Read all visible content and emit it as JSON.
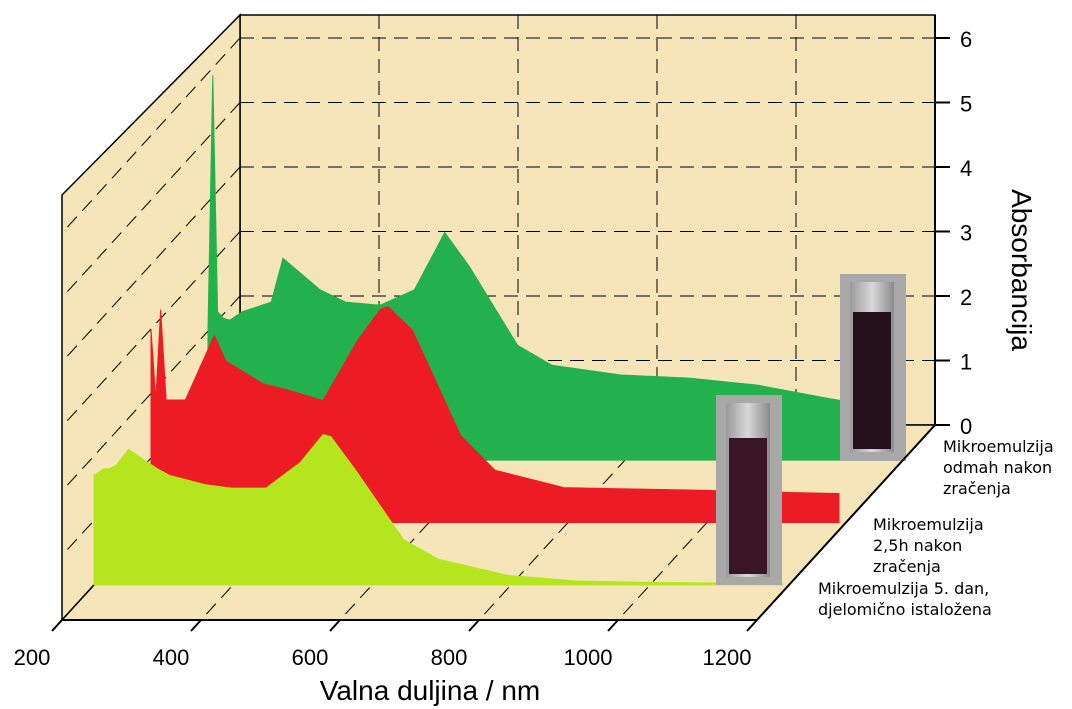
{
  "chart_data": {
    "type": "waterfall",
    "x_label": "Valna duljina / nm",
    "y_label": "Absorbancija",
    "xlim": [
      200,
      1200
    ],
    "xticks": [
      200,
      400,
      600,
      800,
      1000,
      1200
    ],
    "ylim": [
      0,
      6
    ],
    "yticks": [
      0,
      1,
      2,
      3,
      4,
      5,
      6
    ],
    "grid": true,
    "x": [
      200,
      207,
      214,
      222,
      232,
      250,
      292,
      309,
      363,
      400,
      450,
      500,
      533,
      544,
      580,
      650,
      700,
      800,
      900,
      1000,
      1100,
      1200
    ],
    "series": [
      {
        "name": "Mikroemulzija 5. dan, djelomično istaložena",
        "color": "#b5e61d",
        "values": [
          1.7,
          1.75,
          1.8,
          1.8,
          1.85,
          2.1,
          1.8,
          1.7,
          1.55,
          1.5,
          1.5,
          1.9,
          2.33,
          2.3,
          1.78,
          0.7,
          0.4,
          0.15,
          0.06,
          0.04,
          0.03,
          0.03
        ]
      },
      {
        "name": "Mikroemulzija 2,5h nakon zračenja",
        "color": "#ed1c24",
        "values": [
          3.0,
          1.9,
          3.3,
          1.9,
          1.9,
          1.9,
          2.9,
          2.5,
          2.15,
          2.05,
          1.89,
          2.82,
          3.3,
          3.35,
          2.98,
          1.35,
          0.81,
          0.54,
          0.52,
          0.5,
          0.47,
          0.45
        ]
      },
      {
        "name": "Mikroemulzija odmah nakon zračenja",
        "color": "#22b14c",
        "values": [
          2.0,
          5.97,
          2.3,
          2.2,
          2.17,
          2.3,
          2.45,
          3.13,
          2.64,
          2.45,
          2.4,
          2.64,
          3.3,
          3.53,
          3.0,
          1.78,
          1.47,
          1.32,
          1.27,
          1.16,
          0.96,
          0.78
        ]
      }
    ]
  }
}
